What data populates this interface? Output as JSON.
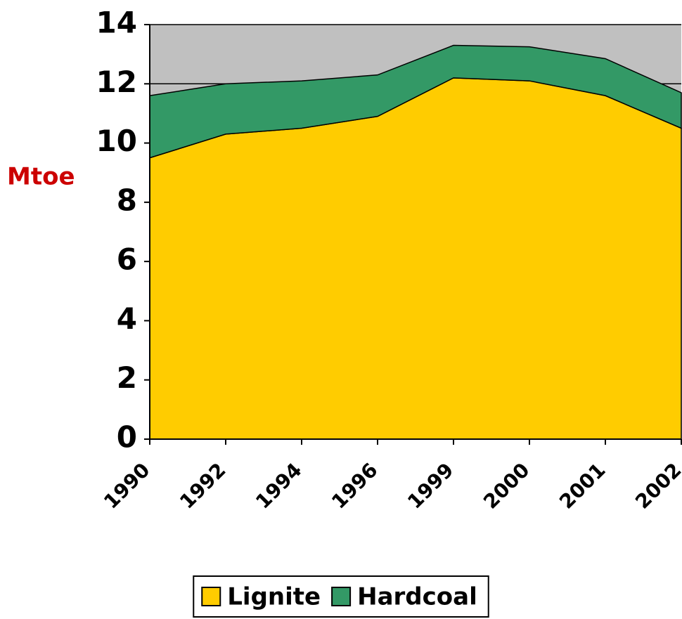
{
  "chart_data": {
    "type": "area",
    "stacked": true,
    "y_label": "Mtoe",
    "categories": [
      "1990",
      "1992",
      "1994",
      "1996",
      "1999",
      "2000",
      "2001",
      "2002"
    ],
    "series": [
      {
        "name": "Lignite",
        "color": "#ffcc00",
        "values": [
          9.5,
          10.3,
          10.5,
          10.9,
          12.2,
          12.1,
          11.6,
          10.5
        ]
      },
      {
        "name": "Hardcoal",
        "color": "#339966",
        "values": [
          2.1,
          1.7,
          1.6,
          1.4,
          1.1,
          1.15,
          1.25,
          1.2
        ]
      }
    ],
    "ylim": [
      0,
      14
    ],
    "yticks": [
      0,
      2,
      4,
      6,
      8,
      10,
      12,
      14
    ],
    "grid": true,
    "plot_background": "#c0c0c0",
    "legend": "bottom"
  }
}
